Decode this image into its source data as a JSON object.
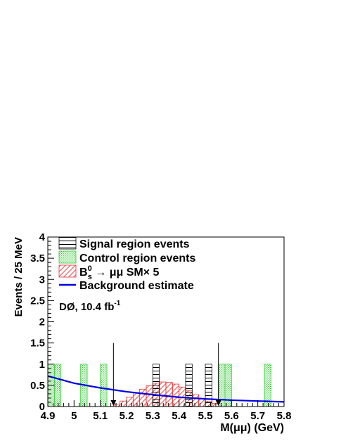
{
  "chart_data": {
    "type": "bar",
    "experiment_label": "DØ, 10.4 fb",
    "experiment_label_sup": "-1",
    "xlabel": "M(μμ) (GeV)",
    "ylabel": "Events / 25 MeV",
    "xlim": [
      4.9,
      5.8
    ],
    "ylim": [
      0,
      4
    ],
    "x_ticks": [
      "4.9",
      "5",
      "5.1",
      "5.2",
      "5.3",
      "5.4",
      "5.5",
      "5.6",
      "5.7",
      "5.8"
    ],
    "y_ticks": [
      "0",
      "0.5",
      "1",
      "1.5",
      "2",
      "2.5",
      "3",
      "3.5",
      "4"
    ],
    "bin_width": 0.025,
    "legend": {
      "signal": "Signal region events",
      "control": "Control region events",
      "sm_main": "B",
      "sm_sup": "0",
      "sm_sub": "s",
      "sm_rest": " → μμ SM× 5",
      "background": "Background estimate"
    },
    "colors": {
      "signal": "#000000",
      "control": "#33cc33",
      "sm": "#e83030",
      "background": "#0000e6"
    },
    "signal_region": [
      5.15,
      5.55
    ],
    "series": [
      {
        "name": "Signal region events",
        "bins": [
          {
            "x0": 5.3,
            "x1": 5.325,
            "y": 1
          },
          {
            "x0": 5.425,
            "x1": 5.45,
            "y": 1
          },
          {
            "x0": 5.5,
            "x1": 5.525,
            "y": 1
          }
        ]
      },
      {
        "name": "Control region events",
        "bins": [
          {
            "x0": 4.9,
            "x1": 4.925,
            "y": 1
          },
          {
            "x0": 4.925,
            "x1": 4.95,
            "y": 1
          },
          {
            "x0": 5.025,
            "x1": 5.05,
            "y": 1
          },
          {
            "x0": 5.1,
            "x1": 5.125,
            "y": 1
          },
          {
            "x0": 5.55,
            "x1": 5.575,
            "y": 1
          },
          {
            "x0": 5.575,
            "x1": 5.6,
            "y": 1
          },
          {
            "x0": 5.725,
            "x1": 5.75,
            "y": 1
          }
        ]
      },
      {
        "name": "B_s^0 → μμ SM× 5",
        "bins": [
          {
            "x0": 5.15,
            "x1": 5.175,
            "y": 0.06
          },
          {
            "x0": 5.175,
            "x1": 5.2,
            "y": 0.13
          },
          {
            "x0": 5.2,
            "x1": 5.225,
            "y": 0.22
          },
          {
            "x0": 5.225,
            "x1": 5.25,
            "y": 0.32
          },
          {
            "x0": 5.25,
            "x1": 5.275,
            "y": 0.41
          },
          {
            "x0": 5.275,
            "x1": 5.3,
            "y": 0.49
          },
          {
            "x0": 5.3,
            "x1": 5.325,
            "y": 0.55
          },
          {
            "x0": 5.325,
            "x1": 5.35,
            "y": 0.58
          },
          {
            "x0": 5.35,
            "x1": 5.375,
            "y": 0.57
          },
          {
            "x0": 5.375,
            "x1": 5.4,
            "y": 0.53
          },
          {
            "x0": 5.4,
            "x1": 5.425,
            "y": 0.46
          },
          {
            "x0": 5.425,
            "x1": 5.45,
            "y": 0.37
          },
          {
            "x0": 5.45,
            "x1": 5.475,
            "y": 0.28
          },
          {
            "x0": 5.475,
            "x1": 5.5,
            "y": 0.19
          },
          {
            "x0": 5.5,
            "x1": 5.525,
            "y": 0.12
          },
          {
            "x0": 5.525,
            "x1": 5.55,
            "y": 0.07
          }
        ]
      },
      {
        "name": "Background estimate",
        "x": [
          4.9,
          5.0,
          5.1,
          5.2,
          5.3,
          5.4,
          5.5,
          5.6,
          5.7,
          5.8
        ],
        "y": [
          0.72,
          0.55,
          0.44,
          0.35,
          0.28,
          0.22,
          0.18,
          0.15,
          0.13,
          0.11
        ]
      }
    ]
  }
}
